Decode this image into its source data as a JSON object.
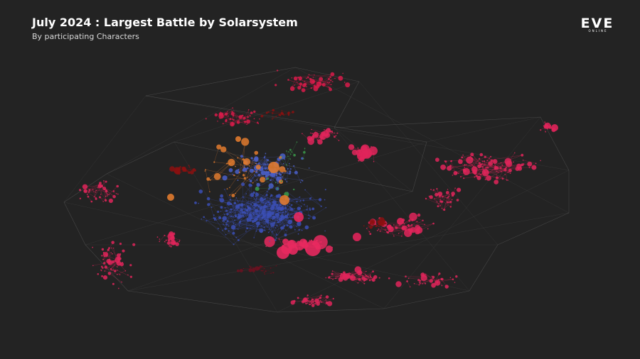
{
  "header": {
    "title": "July 2024 : Largest Battle by Solarsystem",
    "subtitle": "By participating Characters"
  },
  "logo": {
    "title": "EVE",
    "subtitle": "ONLINE"
  }
}
